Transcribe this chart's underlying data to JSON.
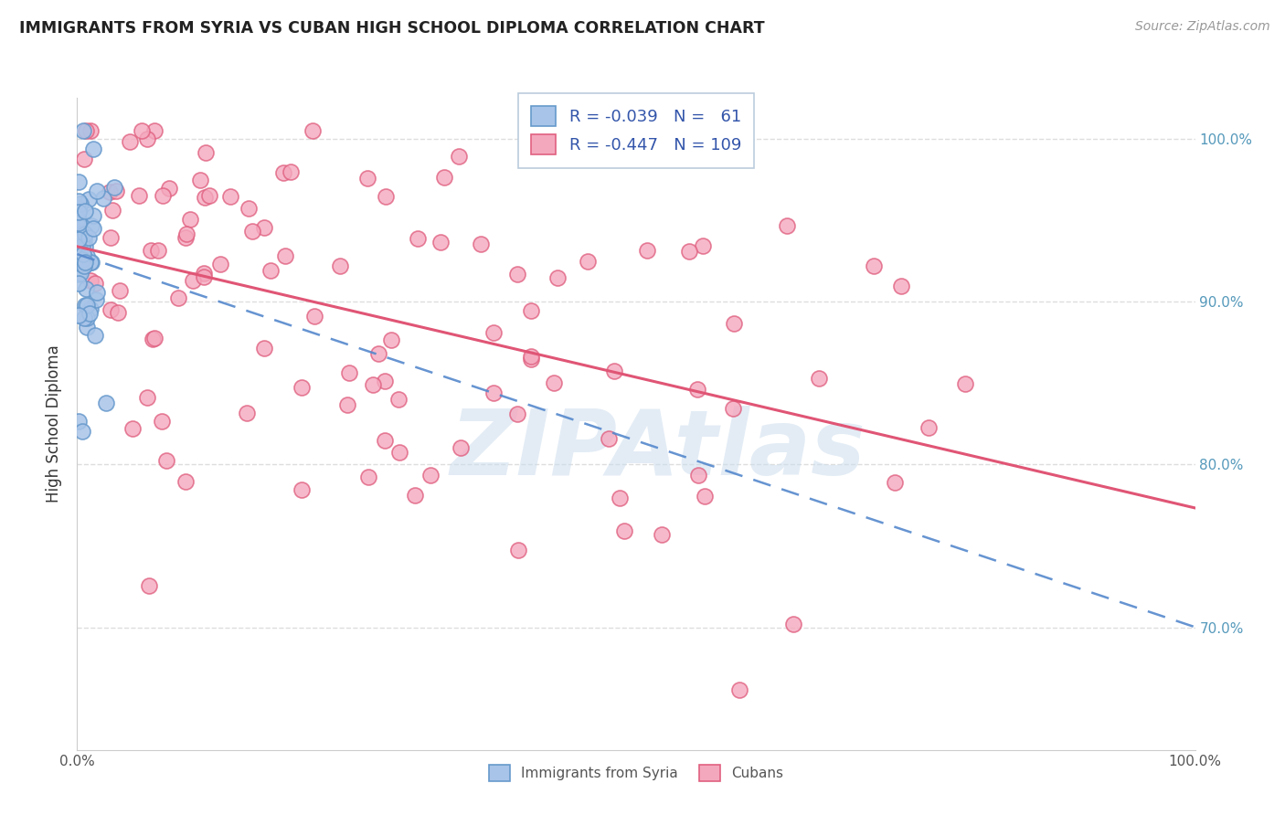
{
  "title": "IMMIGRANTS FROM SYRIA VS CUBAN HIGH SCHOOL DIPLOMA CORRELATION CHART",
  "source": "Source: ZipAtlas.com",
  "ylabel": "High School Diploma",
  "ytick_values": [
    0.7,
    0.8,
    0.9,
    1.0
  ],
  "ytick_labels": [
    "70.0%",
    "80.0%",
    "90.0%",
    "100.0%"
  ],
  "xlim": [
    0.0,
    1.0
  ],
  "ylim": [
    0.625,
    1.025
  ],
  "color_syria_fill": "#a8c4e8",
  "color_syria_edge": "#6699cc",
  "color_cuba_fill": "#f4a8be",
  "color_cuba_edge": "#e06080",
  "color_syria_line": "#5588cc",
  "color_cuba_line": "#e05575",
  "color_legend_text": "#3355aa",
  "color_axis_text": "#5599bb",
  "background_color": "#ffffff",
  "grid_color": "#dddddd",
  "watermark_color": "#ccdded",
  "watermark_text": "ZIPAtlas"
}
